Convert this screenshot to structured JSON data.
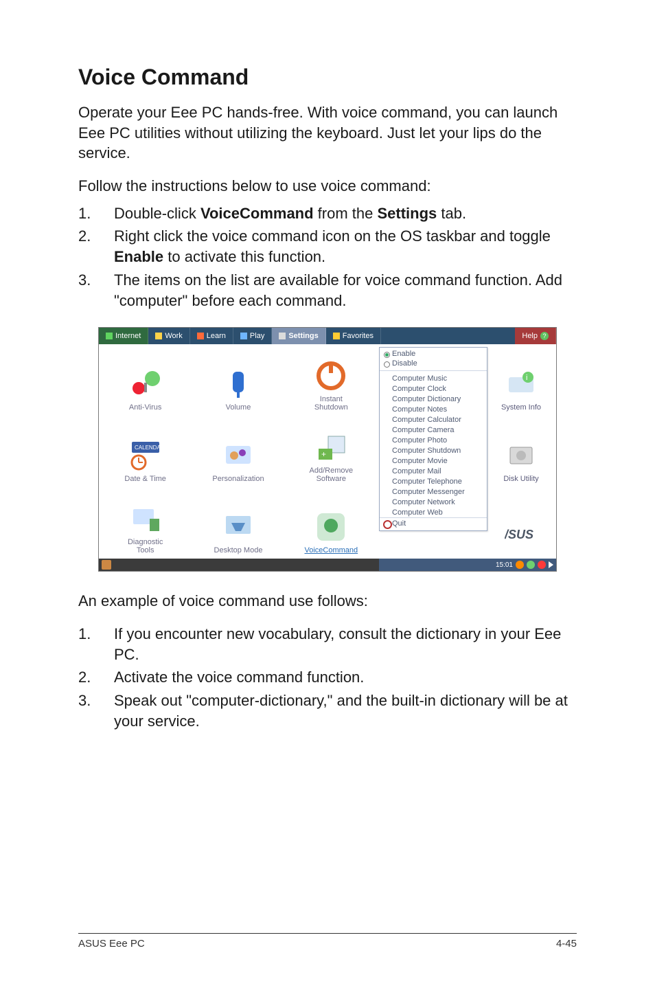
{
  "title": "Voice Command",
  "intro": "Operate your Eee PC hands-free. With voice command, you can launch Eee PC utilities without utilizing the keyboard. Just let your lips do the service.",
  "follow": "Follow the instructions below to use voice command:",
  "steps_a": [
    {
      "n": "1.",
      "pre": "Double-click ",
      "b1": "VoiceCommand",
      "mid": " from the ",
      "b2": "Settings",
      "post": " tab."
    },
    {
      "n": "2.",
      "pre": "Right click the voice command icon on the OS taskbar and toggle ",
      "b1": "Enable",
      "mid": "",
      "b2": "",
      "post": " to activate this function."
    },
    {
      "n": "3.",
      "pre": "The items on the list are available for voice command function. Add \"computer\" before each command.",
      "b1": "",
      "mid": "",
      "b2": "",
      "post": ""
    }
  ],
  "example_lead": "An example of voice command use follows:",
  "steps_b": [
    {
      "n": "1.",
      "t": "If you encounter new vocabulary, consult the dictionary in your Eee PC."
    },
    {
      "n": "2.",
      "t": "Activate the voice command function."
    },
    {
      "n": "3.",
      "t": "Speak out \"computer-dictionary,\" and the built-in dictionary will be at your service."
    }
  ],
  "footer_left": "ASUS Eee PC",
  "footer_right": "4-45",
  "shot": {
    "tabs": [
      {
        "label": "Internet",
        "bg": "#2f6a3f",
        "icon": "#5fd45f"
      },
      {
        "label": "Work",
        "bg": "#2c4f6e",
        "icon": "#ffd24a"
      },
      {
        "label": "Learn",
        "bg": "#2c4f6e",
        "icon": "#ff6a3a"
      },
      {
        "label": "Play",
        "bg": "#2c4f6e",
        "icon": "#6fb6ff"
      },
      {
        "label": "Settings",
        "bg": "#7d90ae",
        "icon": "#dcdcdc",
        "active": true
      },
      {
        "label": "Favorites",
        "bg": "#2c4f6e",
        "icon": "#ffcc33"
      }
    ],
    "help": "Help",
    "help_bg": "#a63a3a",
    "grid": {
      "c1": [
        {
          "label": "Anti-Virus"
        },
        {
          "label": "Date & Time"
        },
        {
          "label": "Diagnostic\nTools"
        }
      ],
      "c2": [
        {
          "label": "Volume"
        },
        {
          "label": "Personalization"
        },
        {
          "label": "Desktop Mode"
        }
      ],
      "c3": [
        {
          "label": "Instant\nShutdown"
        },
        {
          "label": "Add/Remove\nSoftware"
        },
        {
          "label": "VoiceCommand",
          "hi": true
        }
      ],
      "c5": [
        {
          "label": "System Info"
        },
        {
          "label": "Disk Utility"
        },
        {
          "label": ""
        }
      ]
    },
    "menu": {
      "enable": "Enable",
      "disable": "Disable",
      "items": [
        "Computer Music",
        "Computer Clock",
        "Computer Dictionary",
        "Computer Notes",
        "Computer Calculator",
        "Computer Camera",
        "Computer Photo",
        "Computer Shutdown",
        "Computer Movie",
        "Computer Mail",
        "Computer Telephone",
        "Computer Messenger",
        "Computer Network",
        "Computer Web"
      ],
      "quit": "Quit"
    },
    "status": {
      "bg_mid": "#415a7c",
      "bg_right": "#415a7c",
      "time": "15:01",
      "dots": [
        "#ff8a00",
        "#6fd06f",
        "#ff3a3a"
      ]
    },
    "asus_logo": "/SUS",
    "asus_color": "#4b5563"
  }
}
